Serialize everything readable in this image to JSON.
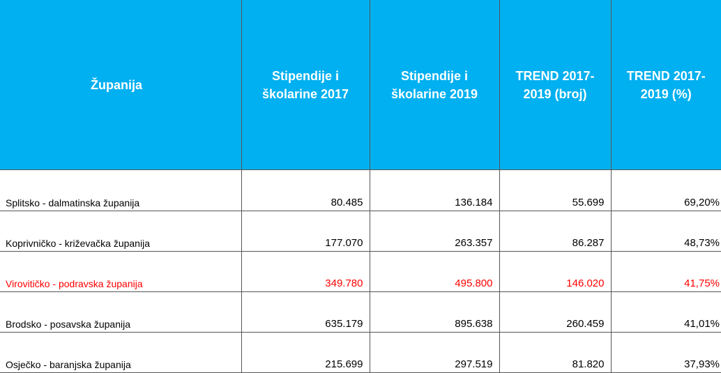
{
  "table": {
    "headers": {
      "county": "Županija",
      "stip2017": "Stipendije i školarine 2017",
      "stip2019": "Stipendije i školarine 2019",
      "trend_count": "TREND 2017-2019 (broj)",
      "trend_pct": "TREND 2017-2019 (%)"
    },
    "highlight_color": "#ff0000",
    "header_bg": "#00b0f0",
    "rows": [
      {
        "county": "Splitsko - dalmatinska županija",
        "stip2017": "80.485",
        "stip2019": "136.184",
        "trend_count": "55.699",
        "trend_pct": "69,20%"
      },
      {
        "county": "Koprivničko - križevačka županija",
        "stip2017": "177.070",
        "stip2019": "263.357",
        "trend_count": "86.287",
        "trend_pct": "48,73%"
      },
      {
        "county": "Virovitičko - podravska županija",
        "stip2017": "349.780",
        "stip2019": "495.800",
        "trend_count": "146.020",
        "trend_pct": "41,75%",
        "highlighted": true
      },
      {
        "county": "Brodsko - posavska županija",
        "stip2017": "635.179",
        "stip2019": "895.638",
        "trend_count": "260.459",
        "trend_pct": "41,01%"
      },
      {
        "county": "Osječko - baranjska županija",
        "stip2017": "215.699",
        "stip2019": "297.519",
        "trend_count": "81.820",
        "trend_pct": "37,93%"
      }
    ]
  }
}
